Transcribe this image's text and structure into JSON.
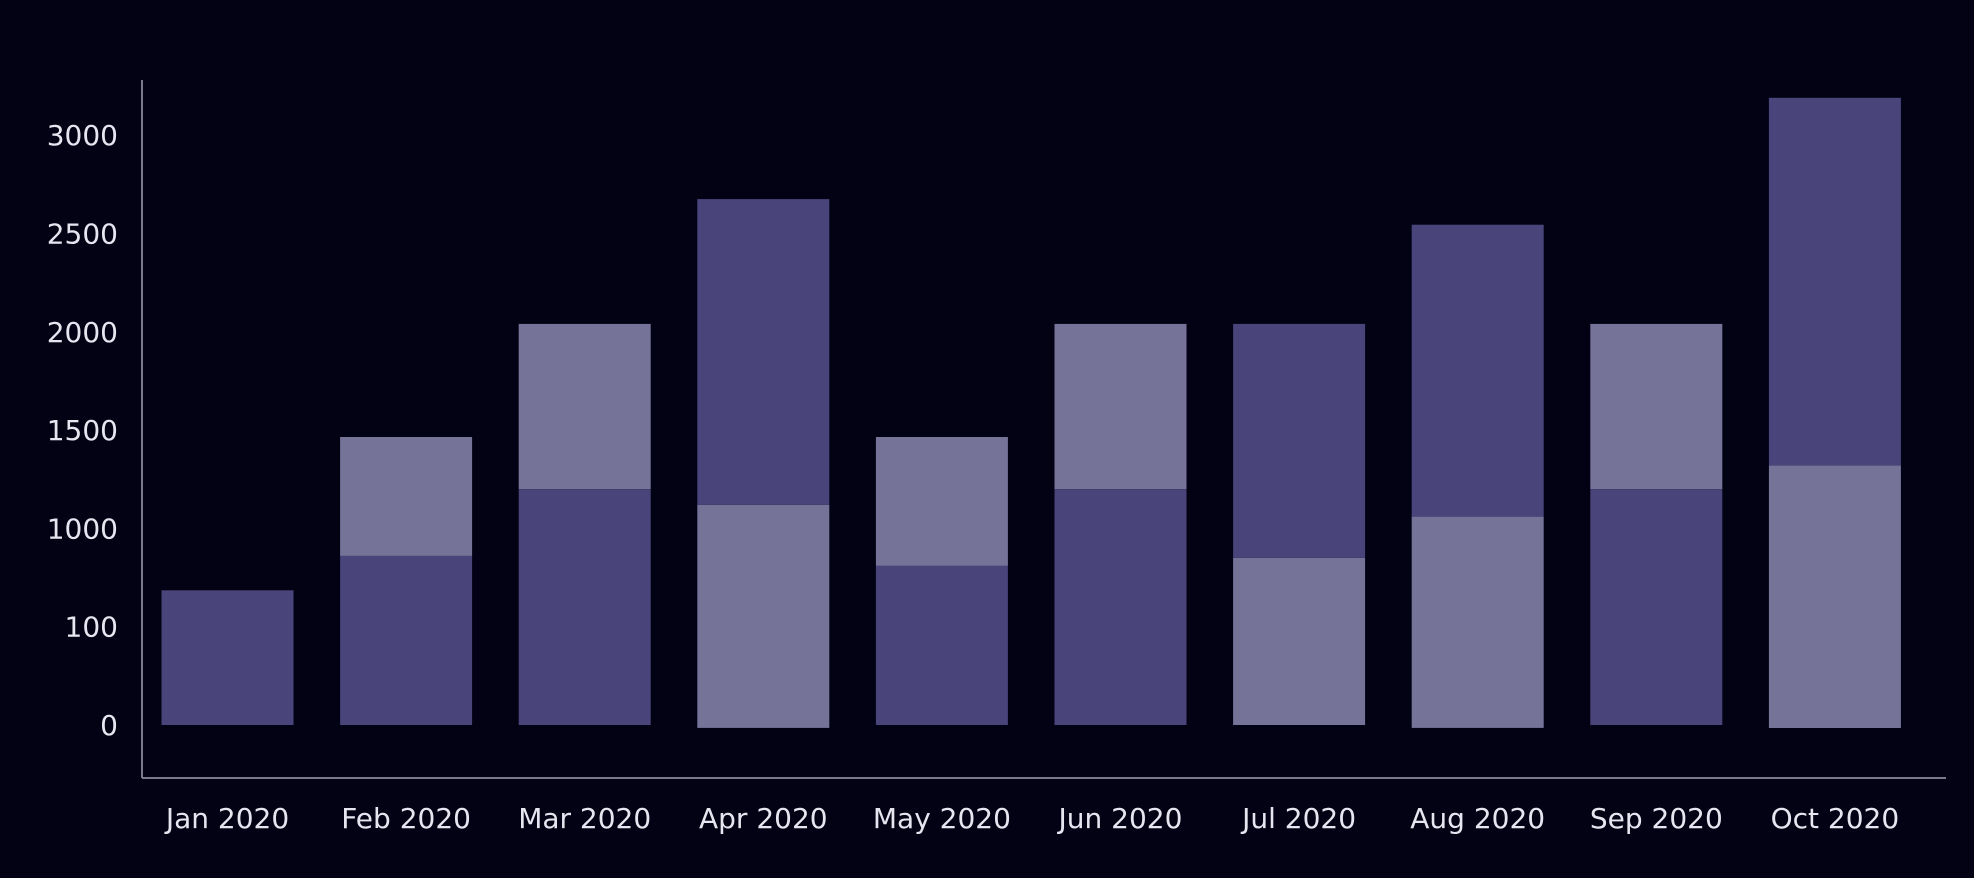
{
  "chart_data": {
    "type": "bar",
    "stacked": true,
    "categories": [
      "Jan 2020",
      "Feb 2020",
      "Mar 2020",
      "Apr 2020",
      "May 2020",
      "Jun 2020",
      "Jul 2020",
      "Aug 2020",
      "Sep 2020",
      "Oct 2020"
    ],
    "yticks": [
      "0",
      "100",
      "1000",
      "1500",
      "2000",
      "2500",
      "3000"
    ],
    "ytick_positions": [
      0,
      1,
      2,
      3,
      4,
      5,
      6
    ],
    "ylim": [
      -0.34,
      6.4
    ],
    "colors": {
      "dark": "#49447a",
      "light": "#767399"
    },
    "segments": [
      [
        {
          "shade": "dark",
          "from": 0,
          "to": 1.37
        }
      ],
      [
        {
          "shade": "dark",
          "from": 0,
          "to": 1.72
        },
        {
          "shade": "light",
          "from": 1.72,
          "to": 2.93
        }
      ],
      [
        {
          "shade": "dark",
          "from": 0,
          "to": 2.4
        },
        {
          "shade": "light",
          "from": 2.4,
          "to": 4.08
        }
      ],
      [
        {
          "shade": "light",
          "from": -0.03,
          "to": 2.24
        },
        {
          "shade": "dark",
          "from": 2.24,
          "to": 5.35
        }
      ],
      [
        {
          "shade": "dark",
          "from": 0,
          "to": 1.62
        },
        {
          "shade": "light",
          "from": 1.62,
          "to": 2.93
        }
      ],
      [
        {
          "shade": "dark",
          "from": 0,
          "to": 2.4
        },
        {
          "shade": "light",
          "from": 2.4,
          "to": 4.08
        }
      ],
      [
        {
          "shade": "light",
          "from": 0,
          "to": 1.7
        },
        {
          "shade": "dark",
          "from": 1.7,
          "to": 4.08
        }
      ],
      [
        {
          "shade": "light",
          "from": -0.03,
          "to": 2.12
        },
        {
          "shade": "dark",
          "from": 2.12,
          "to": 5.09
        }
      ],
      [
        {
          "shade": "dark",
          "from": 0,
          "to": 2.4
        },
        {
          "shade": "light",
          "from": 2.4,
          "to": 4.08
        }
      ],
      [
        {
          "shade": "light",
          "from": -0.03,
          "to": 2.64
        },
        {
          "shade": "dark",
          "from": 2.64,
          "to": 6.38
        }
      ]
    ]
  }
}
